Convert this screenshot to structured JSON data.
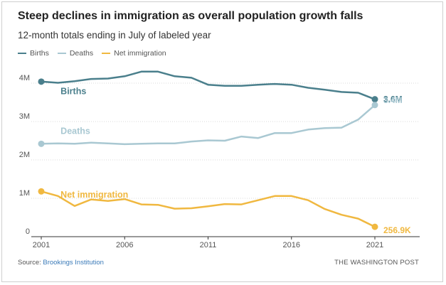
{
  "header": {
    "title": "Steep declines in immigration as overall population growth falls",
    "subtitle": "12-month totals ending in July of labeled year"
  },
  "legend": [
    {
      "label": "Births",
      "color": "#4a7f8c"
    },
    {
      "label": "Deaths",
      "color": "#a9c8d2"
    },
    {
      "label": "Net immigration",
      "color": "#f0b840"
    }
  ],
  "footer": {
    "source_prefix": "Source: ",
    "source_link": "Brookings Institution",
    "credit": "THE WASHINGTON POST"
  },
  "chart_data": {
    "type": "line",
    "x": [
      2001,
      2002,
      2003,
      2004,
      2005,
      2006,
      2007,
      2008,
      2009,
      2010,
      2011,
      2012,
      2013,
      2014,
      2015,
      2016,
      2017,
      2018,
      2019,
      2020,
      2021
    ],
    "series": [
      {
        "name": "Births",
        "color": "#4a7f8c",
        "values": [
          4.04,
          4.01,
          4.05,
          4.11,
          4.12,
          4.18,
          4.3,
          4.3,
          4.18,
          4.14,
          3.96,
          3.93,
          3.93,
          3.96,
          3.98,
          3.96,
          3.88,
          3.83,
          3.77,
          3.75,
          3.58
        ],
        "inline_label": "Births",
        "end_label": "3.6M"
      },
      {
        "name": "Deaths",
        "color": "#a9c8d2",
        "values": [
          2.42,
          2.43,
          2.42,
          2.45,
          2.43,
          2.41,
          2.42,
          2.43,
          2.43,
          2.48,
          2.51,
          2.5,
          2.61,
          2.57,
          2.7,
          2.7,
          2.79,
          2.83,
          2.84,
          3.05,
          3.43
        ],
        "inline_label": "Deaths",
        "end_label": "3.4M"
      },
      {
        "name": "Net immigration",
        "color": "#f0b840",
        "values": [
          1.18,
          1.06,
          0.8,
          0.97,
          0.93,
          0.98,
          0.84,
          0.83,
          0.73,
          0.74,
          0.79,
          0.85,
          0.84,
          0.95,
          1.06,
          1.06,
          0.95,
          0.72,
          0.57,
          0.47,
          0.2569
        ],
        "inline_label": "Net immigration",
        "end_label": "256.9K"
      }
    ],
    "ylim": [
      0,
      4.5
    ],
    "yticks": [
      0,
      1,
      2,
      3,
      4
    ],
    "ytick_labels": [
      "0",
      "1M",
      "2M",
      "3M",
      "4M"
    ],
    "xticks": [
      2001,
      2006,
      2011,
      2016,
      2021
    ],
    "xtick_labels": [
      "2001",
      "2006",
      "2011",
      "2016",
      "2021"
    ],
    "grid": true
  }
}
